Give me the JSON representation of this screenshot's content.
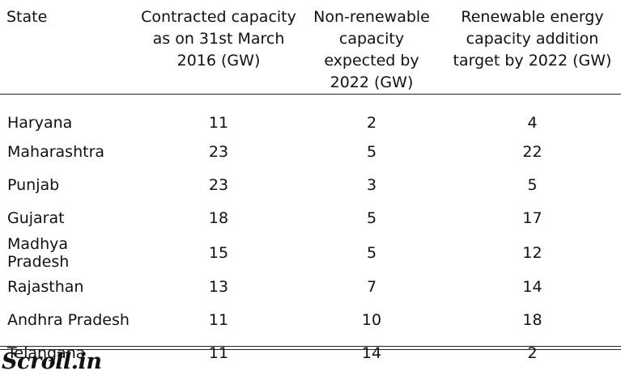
{
  "table": {
    "headers": [
      "State",
      "Contracted capacity as on 31st March 2016 (GW)",
      "Non-renewable capacity expected by 2022 (GW)",
      "Renewable energy capacity addition target by 2022 (GW)"
    ],
    "rows": [
      [
        "Haryana",
        "11",
        "2",
        "4"
      ],
      [
        "Maharashtra",
        "23",
        "5",
        "22"
      ],
      [
        "Punjab",
        "23",
        "3",
        "5"
      ],
      [
        "Gujarat",
        "18",
        "5",
        "17"
      ],
      [
        "Madhya Pradesh",
        "15",
        "5",
        "12"
      ],
      [
        "Rajasthan",
        "13",
        "7",
        "14"
      ],
      [
        "Andhra Pradesh",
        "11",
        "10",
        "18"
      ],
      [
        "Telangana",
        "11",
        "14",
        "2"
      ]
    ]
  },
  "footer": {
    "logo_text": "Scroll.in"
  }
}
